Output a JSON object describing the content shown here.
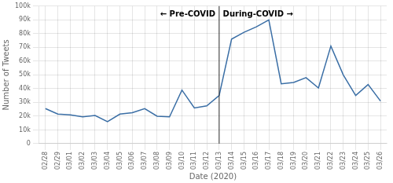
{
  "chart_data": {
    "type": "line",
    "categories": [
      "02/28",
      "02/29",
      "03/01",
      "03/02",
      "03/03",
      "03/04",
      "03/05",
      "03/06",
      "03/07",
      "03/08",
      "03/09",
      "03/10",
      "03/11",
      "03/12",
      "03/13",
      "03/14",
      "03/15",
      "03/16",
      "03/17",
      "03/18",
      "03/19",
      "03/20",
      "03/21",
      "03/22",
      "03/23",
      "03/24",
      "03/25",
      "03/26"
    ],
    "values": [
      25500,
      21500,
      21000,
      19500,
      20500,
      16000,
      21500,
      22500,
      25500,
      20000,
      19500,
      39000,
      26000,
      27500,
      35000,
      76000,
      81000,
      85000,
      90000,
      43500,
      44500,
      48000,
      40500,
      71000,
      50000,
      35000,
      43000,
      31000
    ],
    "color": "#3a6ea5",
    "xlabel": "Date (2020)",
    "ylabel": "Number of Tweets",
    "ylim": [
      0,
      100000
    ],
    "yticks": [
      0,
      {
        "value": 10000,
        "label": "10k"
      },
      {
        "value": 20000,
        "label": "20k"
      },
      {
        "value": 30000,
        "label": "30k"
      },
      {
        "value": 40000,
        "label": "40k"
      },
      {
        "value": 50000,
        "label": "50k"
      },
      {
        "value": 60000,
        "label": "60k"
      },
      {
        "value": 70000,
        "label": "70k"
      },
      {
        "value": 80000,
        "label": "80k"
      },
      {
        "value": 90000,
        "label": "90k"
      },
      {
        "value": 100000,
        "label": "100k"
      }
    ],
    "grid": true,
    "vlines": [
      {
        "x": "03/13",
        "color": "#333333"
      }
    ],
    "annotations": [
      {
        "text": "← Pre-COVID",
        "x": "03/13",
        "y": 97000,
        "align": "right"
      },
      {
        "text": "During-COVID →",
        "x": "03/13",
        "y": 97000,
        "align": "left"
      }
    ]
  }
}
